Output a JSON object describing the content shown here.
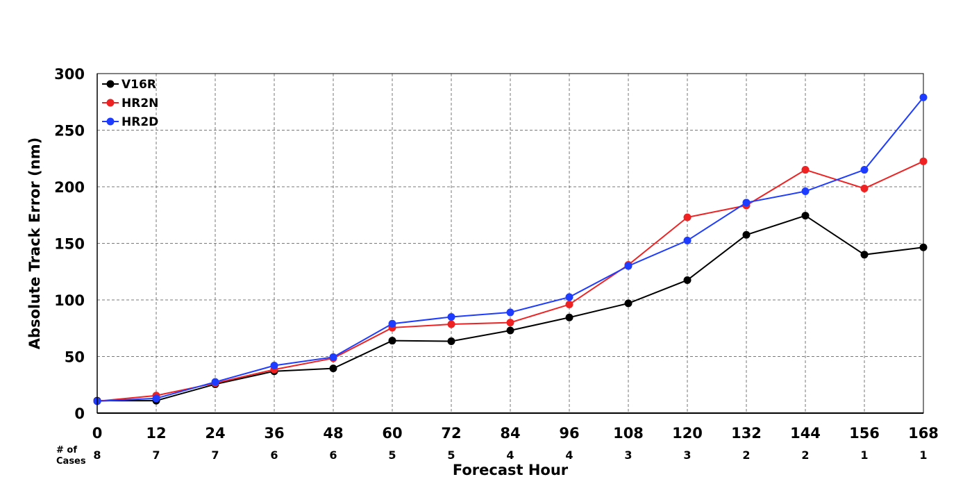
{
  "chart_data": {
    "type": "line",
    "title": "",
    "xlabel": "Forecast Hour",
    "ylabel": "Absolute Track Error (nm)",
    "x": [
      0,
      12,
      24,
      36,
      48,
      60,
      72,
      84,
      96,
      108,
      120,
      132,
      144,
      156,
      168
    ],
    "xticks": [
      "0",
      "12",
      "24",
      "36",
      "48",
      "60",
      "72",
      "84",
      "96",
      "108",
      "120",
      "132",
      "144",
      "156",
      "168"
    ],
    "yticks": [
      "0",
      "50",
      "100",
      "150",
      "200",
      "250",
      "300"
    ],
    "xlim": [
      0,
      168
    ],
    "ylim": [
      0,
      300
    ],
    "grid": true,
    "legend_position": "top-left",
    "cases_label": "# of Cases",
    "cases_label_line1": "# of",
    "cases_label_line2": "Cases",
    "cases": [
      "8",
      "7",
      "7",
      "6",
      "6",
      "5",
      "5",
      "4",
      "4",
      "3",
      "3",
      "2",
      "2",
      "1",
      "1"
    ],
    "series": [
      {
        "name": "V16R",
        "color": "#000000",
        "values": [
          11,
          11,
          25.5,
          37,
          39.5,
          64,
          63.5,
          73,
          84.5,
          97,
          117.5,
          157.5,
          174.5,
          140,
          146.5
        ]
      },
      {
        "name": "HR2N",
        "color": "#ee2222",
        "values": [
          10.5,
          15.5,
          26.5,
          38.5,
          48.5,
          75.5,
          78.5,
          80,
          96,
          131,
          173,
          183.5,
          215,
          198.5,
          222.5
        ]
      },
      {
        "name": "HR2D",
        "color": "#1e3cff",
        "values": [
          10.5,
          13,
          27.5,
          42,
          49.5,
          79,
          85,
          89,
          102.5,
          130,
          152.5,
          186,
          196,
          215,
          279
        ]
      }
    ]
  }
}
